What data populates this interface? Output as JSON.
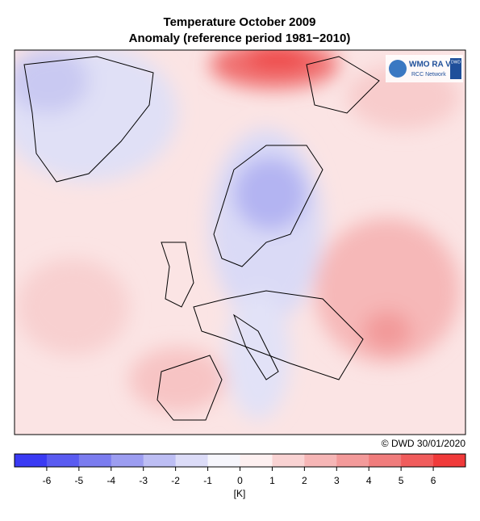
{
  "title": "Temperature October 2009",
  "subtitle": "Anomaly (reference period 1981−2010)",
  "logo": {
    "text": "WMO RA VI",
    "subtext": "RCC Network",
    "badge": "DWD"
  },
  "copyright": "© DWD 30/01/2020",
  "colorbar": {
    "lim": [
      -7,
      7
    ],
    "ticks": [
      -6,
      -5,
      -4,
      -3,
      -2,
      -1,
      0,
      1,
      2,
      3,
      4,
      5,
      6
    ],
    "colors": [
      "#3a3af4",
      "#5a5bf1",
      "#7b7cef",
      "#9c9df1",
      "#bdbef4",
      "#dcdcf8",
      "#f6f6fc",
      "#fdf0f0",
      "#f9d3d3",
      "#f6b6b6",
      "#f39a9a",
      "#f07c7c",
      "#f05c5c",
      "#f03a3a"
    ],
    "unit_label": "[K]"
  }
}
